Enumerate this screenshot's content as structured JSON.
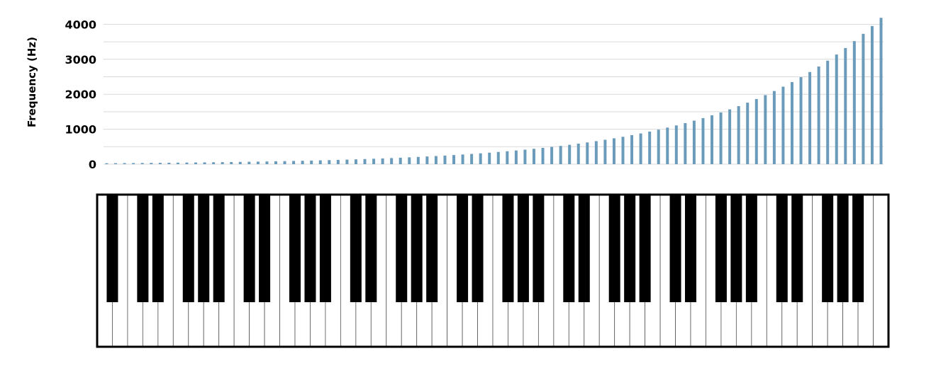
{
  "chart_data": {
    "type": "bar",
    "title": "",
    "xlabel": "",
    "ylabel": "Frequency (Hz)",
    "yticks": [
      0,
      1000,
      2000,
      3000,
      4000
    ],
    "ylim": [
      0,
      4200
    ],
    "grid": true,
    "legend": "none",
    "series": [
      {
        "color": "#6b9bbb",
        "values": [
          27.5,
          29.1,
          30.9,
          32.7,
          34.6,
          36.7,
          38.9,
          41.2,
          43.7,
          46.2,
          49.0,
          51.9,
          55.0,
          58.3,
          61.7,
          65.4,
          69.3,
          73.4,
          77.8,
          82.4,
          87.3,
          92.5,
          98.0,
          103.8,
          110.0,
          116.5,
          123.5,
          130.8,
          138.6,
          146.8,
          155.6,
          164.8,
          174.6,
          185.0,
          196.0,
          207.7,
          220.0,
          233.1,
          246.9,
          261.6,
          277.2,
          293.7,
          311.1,
          329.6,
          349.2,
          370.0,
          392.0,
          415.3,
          440.0,
          466.2,
          493.9,
          523.3,
          554.4,
          587.3,
          622.3,
          659.3,
          698.5,
          740.0,
          784.0,
          830.6,
          880.0,
          932.3,
          987.8,
          1046.5,
          1108.7,
          1174.7,
          1244.5,
          1318.5,
          1396.9,
          1480.0,
          1568.0,
          1661.2,
          1760.0,
          1864.7,
          1975.5,
          2093.0,
          2217.5,
          2349.3,
          2489.0,
          2637.0,
          2793.8,
          2960.0,
          3136.0,
          3322.4,
          3520.0,
          3729.3,
          3951.1,
          4186.0
        ]
      }
    ]
  },
  "keyboard": {
    "white_keys": 52,
    "black_keys": 36,
    "lowest_note": "A0",
    "key_colors": {
      "white": "#ffffff",
      "black": "#000000",
      "frame": "#000000"
    }
  },
  "colors": {
    "bar": "#6b9bbb",
    "grid": "#d9d9d9"
  }
}
